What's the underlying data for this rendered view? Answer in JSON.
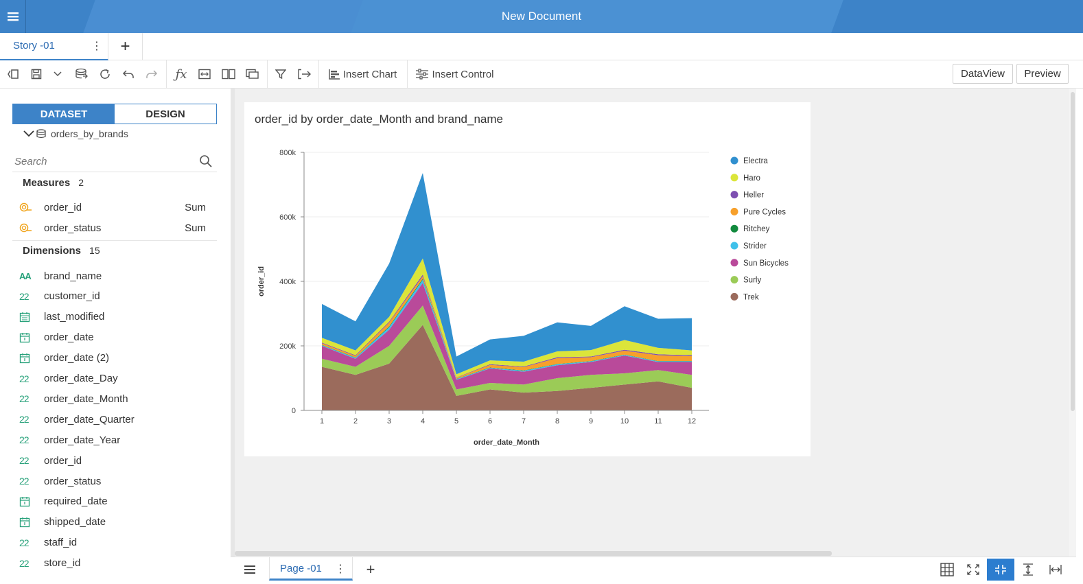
{
  "header": {
    "title": "New Document"
  },
  "tabs": {
    "story_label": "Story -01",
    "add_label": "+"
  },
  "toolbar": {
    "insert_chart": "Insert Chart",
    "insert_control": "Insert Control",
    "dataview": "DataView",
    "preview": "Preview"
  },
  "left_panel": {
    "segments": {
      "dataset": "DATASET",
      "design": "DESIGN"
    },
    "dataset_name": "orders_by_brands",
    "search_placeholder": "Search",
    "measures": {
      "title": "Measures",
      "count": "2",
      "items": [
        {
          "name": "order_id",
          "agg": "Sum"
        },
        {
          "name": "order_status",
          "agg": "Sum"
        }
      ]
    },
    "dimensions": {
      "title": "Dimensions",
      "count": "15",
      "items": [
        {
          "name": "brand_name",
          "icon": "text-icon"
        },
        {
          "name": "customer_id",
          "icon": "number-icon"
        },
        {
          "name": "last_modified",
          "icon": "datetime-icon"
        },
        {
          "name": "order_date",
          "icon": "date-icon"
        },
        {
          "name": "order_date (2)",
          "icon": "date-icon"
        },
        {
          "name": "order_date_Day",
          "icon": "number-icon"
        },
        {
          "name": "order_date_Month",
          "icon": "number-icon"
        },
        {
          "name": "order_date_Quarter",
          "icon": "number-icon"
        },
        {
          "name": "order_date_Year",
          "icon": "number-icon"
        },
        {
          "name": "order_id",
          "icon": "number-icon"
        },
        {
          "name": "order_status",
          "icon": "number-icon"
        },
        {
          "name": "required_date",
          "icon": "date-icon"
        },
        {
          "name": "shipped_date",
          "icon": "date-icon"
        },
        {
          "name": "staff_id",
          "icon": "number-icon"
        },
        {
          "name": "store_id",
          "icon": "number-icon"
        }
      ]
    }
  },
  "chart_data": {
    "type": "area",
    "stacked": true,
    "title": "order_id by order_date_Month and brand_name",
    "xlabel": "order_date_Month",
    "ylabel": "order_id",
    "ylim": [
      0,
      800000
    ],
    "yticks": [
      "0",
      "200k",
      "400k",
      "600k",
      "800k"
    ],
    "categories": [
      "1",
      "2",
      "3",
      "4",
      "5",
      "6",
      "7",
      "8",
      "9",
      "10",
      "11",
      "12"
    ],
    "legend_position": "right",
    "series": [
      {
        "name": "Trek",
        "color": "#9b6b5c",
        "values": [
          135000,
          110000,
          145000,
          265000,
          45000,
          65000,
          55000,
          60000,
          70000,
          80000,
          90000,
          70000
        ]
      },
      {
        "name": "Surly",
        "color": "#9bcb57",
        "values": [
          25000,
          25000,
          55000,
          60000,
          20000,
          20000,
          25000,
          40000,
          40000,
          35000,
          35000,
          40000
        ]
      },
      {
        "name": "Sun Bicycles",
        "color": "#b94a9a",
        "values": [
          40000,
          25000,
          50000,
          70000,
          30000,
          45000,
          40000,
          40000,
          40000,
          55000,
          25000,
          40000
        ]
      },
      {
        "name": "Strider",
        "color": "#3fc1ea",
        "values": [
          2000,
          3000,
          8000,
          10000,
          2000,
          2000,
          3000,
          3000,
          2000,
          2000,
          2000,
          2000
        ]
      },
      {
        "name": "Ritchey",
        "color": "#128a3e",
        "values": [
          1000,
          1000,
          2000,
          3000,
          1000,
          1000,
          1000,
          1000,
          1000,
          1000,
          1000,
          1000
        ]
      },
      {
        "name": "Pure Cycles",
        "color": "#f7a02b",
        "values": [
          5000,
          5000,
          12000,
          8000,
          3000,
          8000,
          10000,
          18000,
          12000,
          12000,
          18000,
          15000
        ]
      },
      {
        "name": "Heller",
        "color": "#7d4fb1",
        "values": [
          2000,
          2000,
          3000,
          5000,
          1000,
          2000,
          2000,
          3000,
          2000,
          3000,
          3000,
          3000
        ]
      },
      {
        "name": "Haro",
        "color": "#dbe53a",
        "values": [
          15000,
          15000,
          15000,
          50000,
          10000,
          12000,
          15000,
          18000,
          20000,
          30000,
          20000,
          15000
        ]
      },
      {
        "name": "Electra",
        "color": "#3190cf",
        "values": [
          105000,
          90000,
          165000,
          265000,
          55000,
          65000,
          80000,
          90000,
          75000,
          105000,
          90000,
          100000
        ]
      }
    ],
    "legend_order": [
      "Electra",
      "Haro",
      "Heller",
      "Pure Cycles",
      "Ritchey",
      "Strider",
      "Sun Bicycles",
      "Surly",
      "Trek"
    ]
  },
  "bottom": {
    "page_label": "Page -01",
    "add_label": "+"
  }
}
